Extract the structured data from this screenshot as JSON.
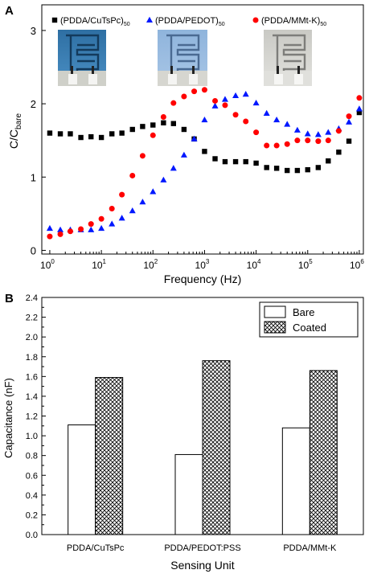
{
  "chart_data": [
    {
      "panel_label": "A",
      "type": "scatter",
      "xlabel": "Frequency (Hz)",
      "ylabel_main": "C/C",
      "ylabel_sub": "bare",
      "x_scale": "log",
      "xlim": [
        0.7,
        1200000
      ],
      "ylim": [
        -0.05,
        3.35
      ],
      "yticks": [
        0,
        1,
        2,
        3
      ],
      "xticks": [
        {
          "v": 1,
          "b": "10",
          "e": "0"
        },
        {
          "v": 10,
          "b": "10",
          "e": "1"
        },
        {
          "v": 100,
          "b": "10",
          "e": "2"
        },
        {
          "v": 1000,
          "b": "10",
          "e": "3"
        },
        {
          "v": 10000,
          "b": "10",
          "e": "4"
        },
        {
          "v": 100000,
          "b": "10",
          "e": "5"
        },
        {
          "v": 1000000,
          "b": "10",
          "e": "6"
        }
      ],
      "legend_position": "top",
      "series": [
        {
          "name": "(PDDA/CuTsPc)",
          "name_sub": "50",
          "marker": "square",
          "color": "#000000",
          "points": [
            [
              1,
              1.6
            ],
            [
              1.6,
              1.59
            ],
            [
              2.5,
              1.59
            ],
            [
              4,
              1.54
            ],
            [
              6.3,
              1.55
            ],
            [
              10,
              1.54
            ],
            [
              16,
              1.59
            ],
            [
              25,
              1.6
            ],
            [
              40,
              1.65
            ],
            [
              63,
              1.69
            ],
            [
              100,
              1.71
            ],
            [
              160,
              1.74
            ],
            [
              250,
              1.73
            ],
            [
              400,
              1.65
            ],
            [
              630,
              1.52
            ],
            [
              1000,
              1.35
            ],
            [
              1600,
              1.25
            ],
            [
              2500,
              1.21
            ],
            [
              4000,
              1.21
            ],
            [
              6300,
              1.21
            ],
            [
              10000,
              1.19
            ],
            [
              16000,
              1.13
            ],
            [
              25000,
              1.12
            ],
            [
              40000,
              1.09
            ],
            [
              63000,
              1.09
            ],
            [
              100000,
              1.1
            ],
            [
              160000,
              1.13
            ],
            [
              250000,
              1.22
            ],
            [
              400000,
              1.34
            ],
            [
              630000,
              1.49
            ],
            [
              1000000,
              1.88
            ]
          ]
        },
        {
          "name": "(PDDA/PEDOT)",
          "name_sub": "50",
          "marker": "triangle",
          "color": "#0018ff",
          "points": [
            [
              1,
              0.3
            ],
            [
              1.6,
              0.28
            ],
            [
              2.5,
              0.28
            ],
            [
              4,
              0.28
            ],
            [
              6.3,
              0.28
            ],
            [
              10,
              0.3
            ],
            [
              16,
              0.36
            ],
            [
              25,
              0.44
            ],
            [
              40,
              0.54
            ],
            [
              63,
              0.66
            ],
            [
              100,
              0.8
            ],
            [
              160,
              0.96
            ],
            [
              250,
              1.12
            ],
            [
              400,
              1.3
            ],
            [
              630,
              1.52
            ],
            [
              1000,
              1.78
            ],
            [
              1600,
              1.97
            ],
            [
              2500,
              2.06
            ],
            [
              4000,
              2.11
            ],
            [
              6300,
              2.13
            ],
            [
              10000,
              2.01
            ],
            [
              16000,
              1.87
            ],
            [
              25000,
              1.78
            ],
            [
              40000,
              1.72
            ],
            [
              63000,
              1.64
            ],
            [
              100000,
              1.59
            ],
            [
              160000,
              1.58
            ],
            [
              250000,
              1.61
            ],
            [
              400000,
              1.66
            ],
            [
              630000,
              1.75
            ],
            [
              1000000,
              1.93
            ]
          ]
        },
        {
          "name": "(PDDA/MMt-K)",
          "name_sub": "50",
          "marker": "circle",
          "color": "#ff0000",
          "points": [
            [
              1,
              0.19
            ],
            [
              1.6,
              0.22
            ],
            [
              2.5,
              0.26
            ],
            [
              4,
              0.29
            ],
            [
              6.3,
              0.36
            ],
            [
              10,
              0.43
            ],
            [
              16,
              0.57
            ],
            [
              25,
              0.76
            ],
            [
              40,
              1.02
            ],
            [
              63,
              1.29
            ],
            [
              100,
              1.57
            ],
            [
              160,
              1.82
            ],
            [
              250,
              2.01
            ],
            [
              400,
              2.1
            ],
            [
              630,
              2.17
            ],
            [
              1000,
              2.19
            ],
            [
              1600,
              2.04
            ],
            [
              2500,
              1.98
            ],
            [
              4000,
              1.85
            ],
            [
              6300,
              1.76
            ],
            [
              10000,
              1.61
            ],
            [
              16000,
              1.43
            ],
            [
              25000,
              1.43
            ],
            [
              40000,
              1.45
            ],
            [
              63000,
              1.5
            ],
            [
              100000,
              1.5
            ],
            [
              160000,
              1.49
            ],
            [
              250000,
              1.5
            ],
            [
              400000,
              1.63
            ],
            [
              630000,
              1.83
            ],
            [
              1000000,
              2.08
            ]
          ]
        }
      ]
    },
    {
      "panel_label": "B",
      "type": "bar",
      "xlabel": "Sensing Unit",
      "ylabel": "Capacitance (nF)",
      "ylim": [
        0,
        2.4
      ],
      "ytick_step": 0.2,
      "categories": [
        "PDDA/CuTsPc",
        "PDDA/PEDOT:PSS",
        "PDDA/MMt-K"
      ],
      "legend_position": "top-right",
      "series": [
        {
          "name": "Bare",
          "values": [
            1.11,
            0.81,
            1.08
          ],
          "fill": "plain"
        },
        {
          "name": "Coated",
          "values": [
            1.59,
            1.76,
            1.66
          ],
          "fill": "crosshatch"
        }
      ]
    }
  ]
}
